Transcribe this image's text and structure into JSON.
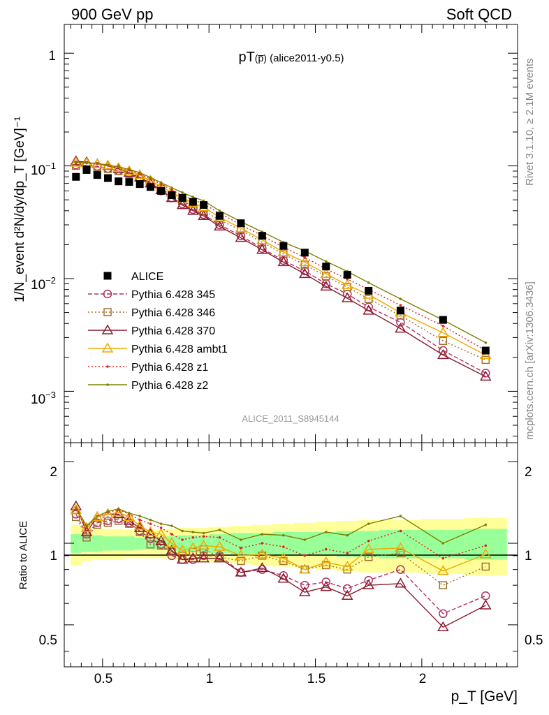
{
  "header": {
    "left": "900 GeV pp",
    "right": "Soft QCD"
  },
  "side": {
    "top": "Rivet 3.1.10, ≥ 2.1M events",
    "bottom": "mcplots.cern.ch [arXiv:1306.3436]"
  },
  "watermark": "ALICE_2011_S8945144",
  "main_title": {
    "prefix": "pT",
    "particle": "(p̅)",
    "suffix": " (alice2011-y0.5)"
  },
  "ylabel_main": "1/N_event d²N/dy/dp_T [GeV]⁻¹",
  "ylabel_ratio": "Ratio to ALICE",
  "xlabel": "p_T [GeV]",
  "main_ticks": {
    "one": "1",
    "e1": "10",
    "e1exp": "−1",
    "e2": "10",
    "e2exp": "−2",
    "e3": "10",
    "e3exp": "−3"
  },
  "ratio_ticks": [
    "0.5",
    "1",
    "2"
  ],
  "x_ticks": [
    "0.5",
    "1",
    "1.5",
    "2"
  ],
  "chart_data": [
    {
      "type": "line",
      "log_y": true,
      "xlim": [
        0.32,
        2.45
      ],
      "ylim": [
        0.00035,
        1.8
      ],
      "legend_position": "middle-left",
      "x": [
        0.375,
        0.425,
        0.475,
        0.525,
        0.575,
        0.625,
        0.675,
        0.725,
        0.775,
        0.825,
        0.875,
        0.925,
        0.975,
        1.05,
        1.15,
        1.25,
        1.35,
        1.45,
        1.55,
        1.65,
        1.75,
        1.9,
        2.1,
        2.3
      ],
      "x_edges": [
        0.35,
        0.4,
        0.45,
        0.5,
        0.55,
        0.6,
        0.65,
        0.7,
        0.75,
        0.8,
        0.85,
        0.9,
        0.95,
        1.0,
        1.1,
        1.2,
        1.3,
        1.4,
        1.5,
        1.6,
        1.7,
        1.8,
        2.0,
        2.2,
        2.4
      ],
      "series": [
        {
          "name": "ALICE",
          "color": "#000000",
          "marker": "square",
          "values": [
            0.08,
            0.092,
            0.083,
            0.078,
            0.073,
            0.072,
            0.069,
            0.065,
            0.06,
            0.055,
            0.052,
            0.048,
            0.045,
            0.036,
            0.031,
            0.024,
            0.0195,
            0.017,
            0.0128,
            0.0108,
            0.0078,
            0.0052,
            0.0043,
            0.0023
          ]
        },
        {
          "name": "Pythia 6.428 345",
          "color": "#b03060",
          "marker": "circle",
          "dash": "6,3",
          "values": [
            0.102,
            0.101,
            0.099,
            0.095,
            0.091,
            0.085,
            0.077,
            0.068,
            0.06,
            0.052,
            0.046,
            0.041,
            0.037,
            0.03,
            0.024,
            0.0185,
            0.0145,
            0.0117,
            0.009,
            0.0073,
            0.0056,
            0.0041,
            0.0023,
            0.00145
          ]
        },
        {
          "name": "Pythia 6.428 346",
          "color": "#a07030",
          "marker": "square-open",
          "dash": "2,3",
          "values": [
            0.1,
            0.099,
            0.097,
            0.094,
            0.09,
            0.085,
            0.078,
            0.071,
            0.063,
            0.055,
            0.049,
            0.044,
            0.04,
            0.033,
            0.027,
            0.021,
            0.0165,
            0.0133,
            0.0105,
            0.0084,
            0.0066,
            0.0047,
            0.0028,
            0.0019
          ]
        },
        {
          "name": "Pythia 6.428 370",
          "color": "#8b1a2e",
          "marker": "triangle",
          "dash": "",
          "values": [
            0.11,
            0.108,
            0.104,
            0.1,
            0.094,
            0.087,
            0.079,
            0.07,
            0.061,
            0.052,
            0.045,
            0.04,
            0.036,
            0.029,
            0.023,
            0.018,
            0.014,
            0.011,
            0.0085,
            0.0067,
            0.0052,
            0.0036,
            0.0021,
            0.00135
          ]
        },
        {
          "name": "Pythia 6.428 ambt1",
          "color": "#f0a800",
          "marker": "triangle",
          "dash": "",
          "values": [
            0.107,
            0.106,
            0.104,
            0.101,
            0.096,
            0.09,
            0.083,
            0.074,
            0.066,
            0.058,
            0.052,
            0.047,
            0.043,
            0.035,
            0.028,
            0.022,
            0.0172,
            0.014,
            0.011,
            0.0088,
            0.0072,
            0.005,
            0.0033,
            0.0021
          ]
        },
        {
          "name": "Pythia 6.428 z1",
          "color": "#e02020",
          "marker": "dot",
          "dash": "2,3",
          "values": [
            0.106,
            0.106,
            0.104,
            0.101,
            0.097,
            0.092,
            0.085,
            0.077,
            0.069,
            0.061,
            0.055,
            0.05,
            0.046,
            0.038,
            0.03,
            0.024,
            0.019,
            0.0154,
            0.0122,
            0.0099,
            0.008,
            0.0058,
            0.0038,
            0.0023
          ]
        },
        {
          "name": "Pythia 6.428 z2",
          "color": "#808000",
          "marker": "dot",
          "dash": "",
          "values": [
            0.108,
            0.107,
            0.105,
            0.102,
            0.098,
            0.093,
            0.087,
            0.079,
            0.071,
            0.064,
            0.058,
            0.053,
            0.049,
            0.04,
            0.032,
            0.026,
            0.021,
            0.0176,
            0.0142,
            0.0116,
            0.0092,
            0.0066,
            0.0043,
            0.0027
          ]
        }
      ]
    },
    {
      "type": "line",
      "ylabel": "Ratio to ALICE",
      "xlim": [
        0.32,
        2.45
      ],
      "ylim": [
        0.35,
        2.35
      ],
      "band_inner": [
        0.08,
        0.07,
        0.07,
        0.06,
        0.06,
        0.06,
        0.05,
        0.05,
        0.05,
        0.06,
        0.07,
        0.07,
        0.07,
        0.08,
        0.09,
        0.09,
        0.1,
        0.1,
        0.1,
        0.11,
        0.11,
        0.12,
        0.12,
        0.13
      ],
      "band_outer": [
        0.17,
        0.14,
        0.13,
        0.13,
        0.13,
        0.12,
        0.12,
        0.12,
        0.12,
        0.13,
        0.14,
        0.14,
        0.14,
        0.15,
        0.16,
        0.17,
        0.18,
        0.19,
        0.2,
        0.21,
        0.22,
        0.22,
        0.23,
        0.24
      ],
      "series": [
        {
          "name": "Pythia 6.428 345",
          "values": [
            1.28,
            1.08,
            1.19,
            1.21,
            1.23,
            1.19,
            1.11,
            1.04,
            0.99,
            0.9,
            0.87,
            0.87,
            0.9,
            0.9,
            0.78,
            0.8,
            0.76,
            0.7,
            0.72,
            0.68,
            0.73,
            0.8,
            0.55,
            0.64
          ]
        },
        {
          "name": "Pythia 6.428 346",
          "values": [
            1.25,
            1.05,
            1.17,
            1.19,
            1.21,
            1.18,
            1.1,
            0.99,
            0.98,
            0.93,
            0.9,
            0.93,
            0.95,
            0.89,
            0.86,
            0.9,
            0.86,
            0.8,
            0.83,
            0.8,
            0.89,
            0.92,
            0.7,
            0.82
          ]
        },
        {
          "name": "Pythia 6.428 370",
          "values": [
            1.37,
            1.1,
            1.25,
            1.28,
            1.28,
            1.21,
            1.14,
            1.08,
            1.02,
            0.94,
            0.87,
            0.88,
            0.88,
            0.88,
            0.78,
            0.81,
            0.74,
            0.66,
            0.69,
            0.64,
            0.7,
            0.71,
            0.49,
            0.59
          ]
        },
        {
          "name": "Pythia 6.428 ambt1",
          "values": [
            1.33,
            1.14,
            1.25,
            1.28,
            1.3,
            1.25,
            1.16,
            1.1,
            1.08,
            1.0,
            0.94,
            0.96,
            0.98,
            0.97,
            0.9,
            0.91,
            0.88,
            0.8,
            0.85,
            0.82,
            0.95,
            0.96,
            0.79,
            0.91
          ]
        },
        {
          "name": "Pythia 6.428 z1",
          "values": [
            1.33,
            1.14,
            1.26,
            1.3,
            1.33,
            1.28,
            1.22,
            1.18,
            1.14,
            1.08,
            1.03,
            1.05,
            1.06,
            1.05,
            0.96,
            1.0,
            0.97,
            0.9,
            0.95,
            0.92,
            1.02,
            1.11,
            0.88,
            0.98
          ]
        },
        {
          "name": "Pythia 6.428 z2",
          "values": [
            1.35,
            1.16,
            1.26,
            1.31,
            1.34,
            1.29,
            1.26,
            1.22,
            1.18,
            1.16,
            1.11,
            1.1,
            1.09,
            1.12,
            1.03,
            1.08,
            1.07,
            1.03,
            1.1,
            1.07,
            1.18,
            1.26,
            1.0,
            1.17
          ]
        }
      ]
    }
  ]
}
